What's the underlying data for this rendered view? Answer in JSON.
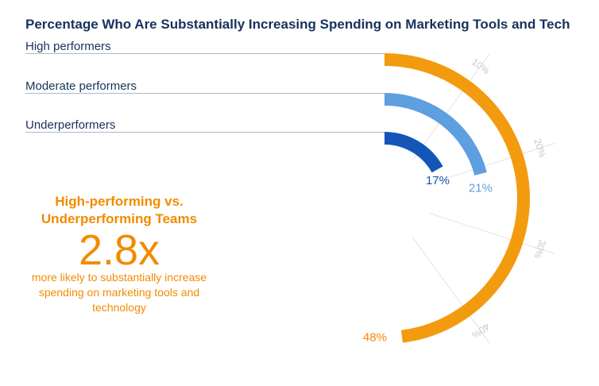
{
  "title": "Percentage Who Are Substantially Increasing Spending on Marketing Tools and Tech",
  "chart_data": {
    "type": "radial-bar",
    "scale_max": 50,
    "series": [
      {
        "name": "High performers",
        "value": 48,
        "label": "48%",
        "color": "#f29b0f"
      },
      {
        "name": "Moderate performers",
        "value": 21,
        "label": "21%",
        "color": "#5d9fdf"
      },
      {
        "name": "Underperformers",
        "value": 17,
        "label": "17%",
        "color": "#1456b8"
      }
    ],
    "ticks": [
      {
        "value": 10,
        "label": "10%"
      },
      {
        "value": 20,
        "label": "20%"
      },
      {
        "value": 30,
        "label": "30%"
      },
      {
        "value": 40,
        "label": "40%"
      }
    ]
  },
  "callout": {
    "heading_line1": "High-performing vs.",
    "heading_line2": "Underperforming Teams",
    "multiplier": "2.8x",
    "description": "more likely to substantially increase spending on marketing tools and technology"
  }
}
